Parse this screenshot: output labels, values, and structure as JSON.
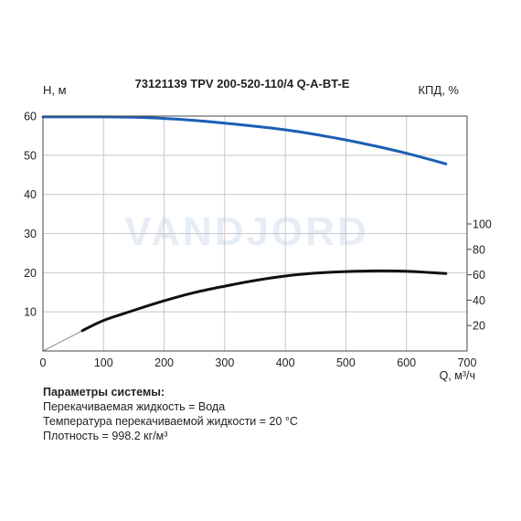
{
  "chart_data": {
    "type": "line",
    "title": "73121139 TPV 200-520-110/4 Q-A-BT-E",
    "xlabel": "Q, м³/ч",
    "ylabel_left": "H, м",
    "ylabel_right": "КПД, %",
    "xlim": [
      0,
      700
    ],
    "ylim_left": [
      0,
      60
    ],
    "ylim_right": [
      0,
      100
    ],
    "x_ticks": [
      "0",
      "100",
      "200",
      "300",
      "400",
      "500",
      "600",
      "700"
    ],
    "y_ticks_left": [
      "10",
      "20",
      "30",
      "40",
      "50",
      "60"
    ],
    "y_ticks_right": [
      "20",
      "40",
      "60",
      "80",
      "100"
    ],
    "grid": true,
    "watermark": "VANDJORD",
    "series": [
      {
        "axis": "left",
        "color": "#1a5fb4",
        "x": [
          0,
          65,
          100,
          150,
          200,
          250,
          300,
          350,
          400,
          450,
          500,
          550,
          600,
          665
        ],
        "y": [
          59.8,
          59.8,
          59.8,
          59.7,
          59.4,
          58.9,
          58.2,
          57.4,
          56.5,
          55.3,
          53.9,
          52.3,
          50.5,
          47.8
        ]
      },
      {
        "axis": "right",
        "color": "#111111",
        "x": [
          65,
          100,
          150,
          200,
          250,
          300,
          350,
          400,
          450,
          500,
          550,
          600,
          665
        ],
        "y": [
          16,
          24,
          32,
          39.5,
          46,
          51,
          55.5,
          59,
          61.3,
          62.5,
          63,
          62.8,
          61
        ]
      }
    ],
    "extrapolation": {
      "axis": "right",
      "color": "#888888",
      "x": [
        0,
        65
      ],
      "y": [
        0,
        16
      ]
    }
  },
  "system_params": {
    "title": "Параметры системы:",
    "lines": [
      "Перекачиваемая жидкость = Вода",
      "Температура перекачиваемой жидкости = 20 °C",
      "Плотность = 998.2 кг/м³"
    ]
  }
}
